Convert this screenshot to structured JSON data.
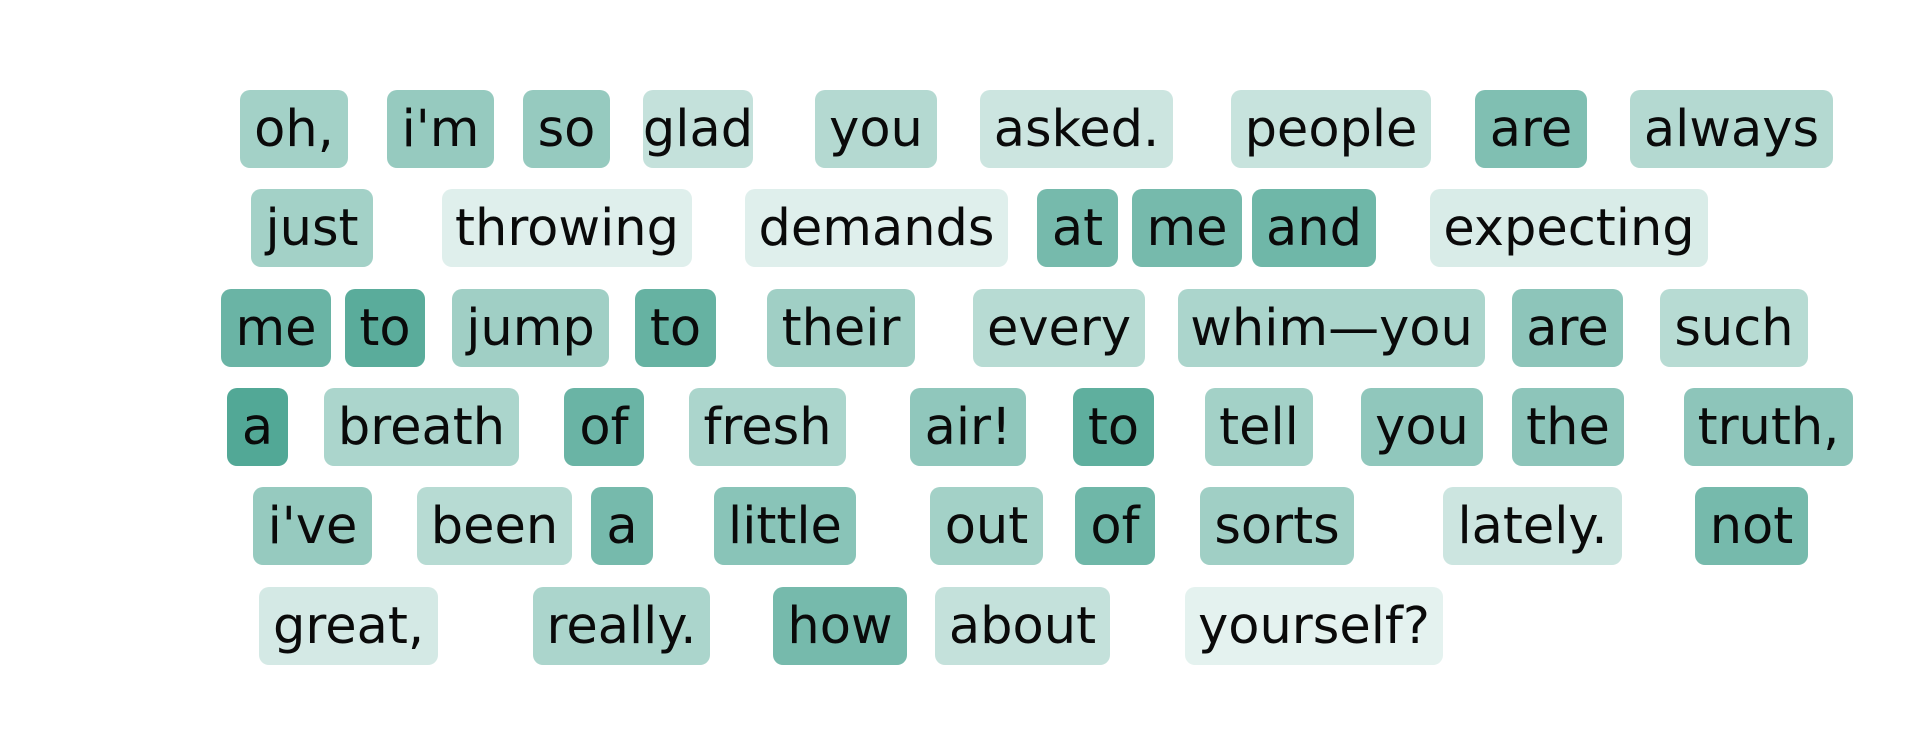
{
  "base_color": "#52a896",
  "tokens": [
    {
      "text": "oh,",
      "w": 0.5
    },
    {
      "text": "i'm",
      "w": 0.58
    },
    {
      "text": "so",
      "w": 0.58
    },
    {
      "text": "glad",
      "w": 0.3
    },
    {
      "text": "you",
      "w": 0.4
    },
    {
      "text": "asked.",
      "w": 0.25
    },
    {
      "text": "people",
      "w": 0.28
    },
    {
      "text": "are",
      "w": 0.72
    },
    {
      "text": "always",
      "w": 0.4
    },
    {
      "text": "just",
      "w": 0.5
    },
    {
      "text": "throwing",
      "w": 0.13
    },
    {
      "text": "demands",
      "w": 0.13
    },
    {
      "text": "at",
      "w": 0.78
    },
    {
      "text": "me",
      "w": 0.78
    },
    {
      "text": "and",
      "w": 0.82
    },
    {
      "text": "expecting",
      "w": 0.17
    },
    {
      "text": "me",
      "w": 0.85
    },
    {
      "text": "to",
      "w": 0.95
    },
    {
      "text": "jump",
      "w": 0.52
    },
    {
      "text": "to",
      "w": 0.88
    },
    {
      "text": "their",
      "w": 0.52
    },
    {
      "text": "every",
      "w": 0.38
    },
    {
      "text": "whim—you",
      "w": 0.45
    },
    {
      "text": "are",
      "w": 0.64
    },
    {
      "text": "such",
      "w": 0.38
    },
    {
      "text": "a",
      "w": 1.0
    },
    {
      "text": "breath",
      "w": 0.45
    },
    {
      "text": "of",
      "w": 0.85
    },
    {
      "text": "fresh",
      "w": 0.45
    },
    {
      "text": "air!",
      "w": 0.62
    },
    {
      "text": "to",
      "w": 0.92
    },
    {
      "text": "tell",
      "w": 0.5
    },
    {
      "text": "you",
      "w": 0.62
    },
    {
      "text": "the",
      "w": 0.64
    },
    {
      "text": "truth,",
      "w": 0.64
    },
    {
      "text": "i've",
      "w": 0.58
    },
    {
      "text": "been",
      "w": 0.38
    },
    {
      "text": "a",
      "w": 0.78
    },
    {
      "text": "little",
      "w": 0.66
    },
    {
      "text": "out",
      "w": 0.5
    },
    {
      "text": "of",
      "w": 0.82
    },
    {
      "text": "sorts",
      "w": 0.52
    },
    {
      "text": "lately.",
      "w": 0.25
    },
    {
      "text": "not",
      "w": 0.78
    },
    {
      "text": "great,",
      "w": 0.2
    },
    {
      "text": "really.",
      "w": 0.45
    },
    {
      "text": "how",
      "w": 0.78
    },
    {
      "text": "about",
      "w": 0.3
    },
    {
      "text": "yourself?",
      "w": 0.1
    }
  ]
}
